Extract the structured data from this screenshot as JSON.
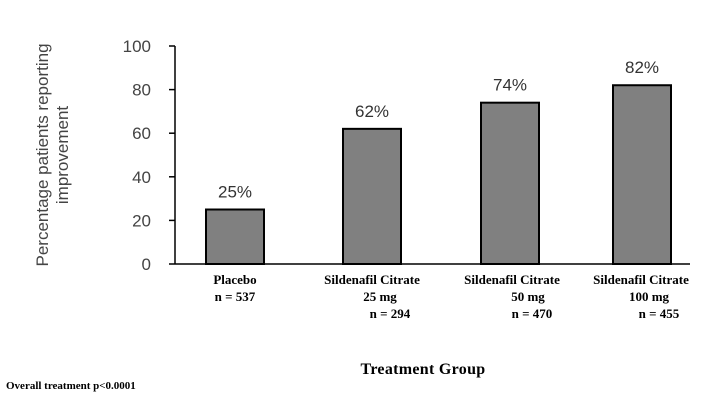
{
  "chart_data": {
    "type": "bar",
    "categories": [
      [
        "Placebo",
        "n = 537"
      ],
      [
        "Sildenafil Citrate",
        "25 mg",
        "n = 294"
      ],
      [
        "Sildenafil Citrate",
        "50 mg",
        "n = 470"
      ],
      [
        "Sildenafil Citrate",
        "100 mg",
        "n = 455"
      ]
    ],
    "values": [
      25,
      62,
      74,
      82
    ],
    "data_labels": [
      "25%",
      "62%",
      "74%",
      "82%"
    ],
    "title": "",
    "xlabel": "Treatment Group",
    "ylabel": [
      "Percentage patients reporting",
      "improvement"
    ],
    "ylim": [
      0,
      100
    ],
    "yticks": [
      0,
      20,
      40,
      60,
      80,
      100
    ],
    "grid": false,
    "colors": {
      "bar_fill": "#808080",
      "bar_stroke": "#000000",
      "axis": "#000000"
    }
  },
  "footnote": "Overall treatment p<0.0001"
}
